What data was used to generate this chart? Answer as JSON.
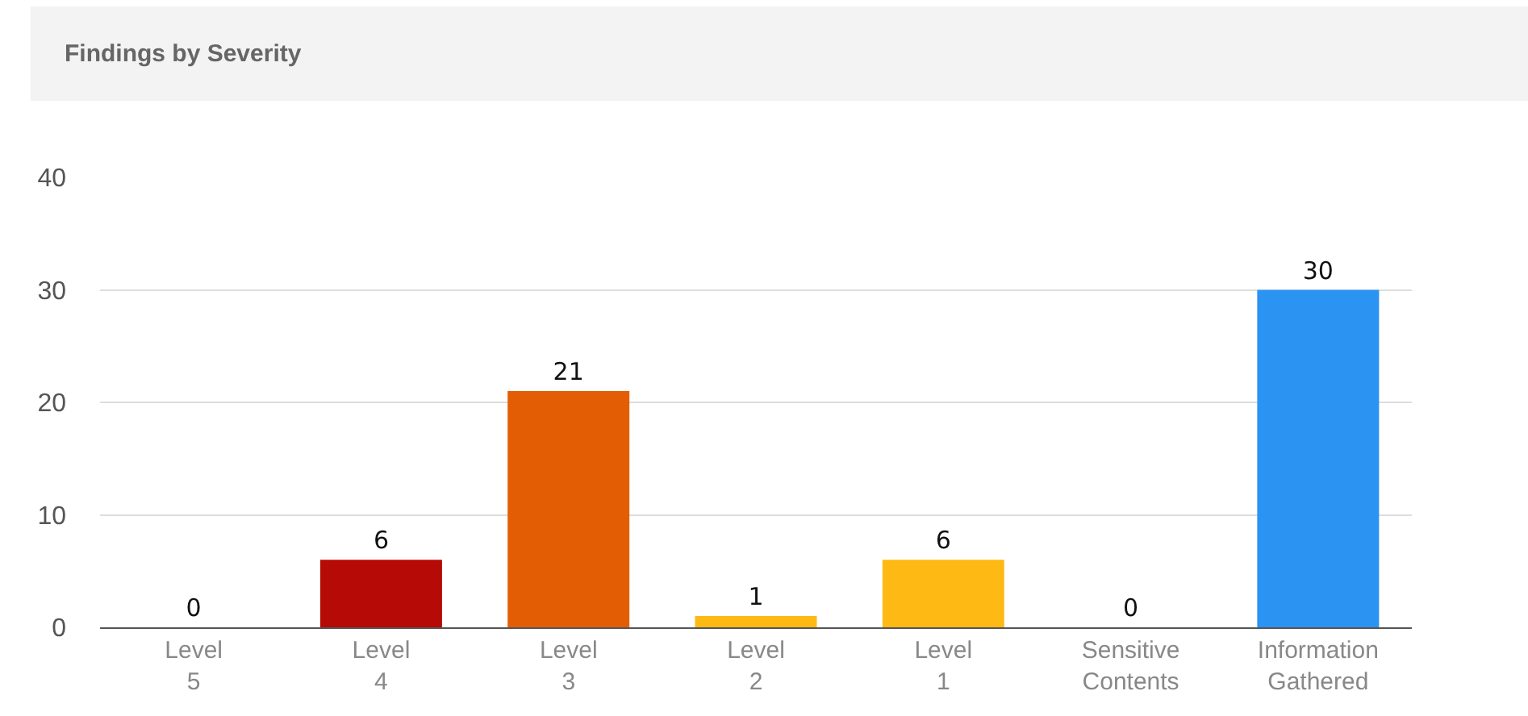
{
  "chart_data": {
    "type": "bar",
    "title": "Findings by Severity",
    "categories": [
      "Level 5",
      "Level 4",
      "Level 3",
      "Level 2",
      "Level 1",
      "Sensitive Contents",
      "Information Gathered"
    ],
    "values": [
      0,
      6,
      21,
      1,
      6,
      0,
      30
    ],
    "colors": [
      "#b50a05",
      "#b50a05",
      "#e35d04",
      "#ffb914",
      "#ffb914",
      "#ffb914",
      "#2b93f2"
    ],
    "ylim": [
      0,
      40
    ],
    "yticks": [
      0,
      10,
      20,
      30,
      40
    ],
    "grid": "y",
    "data_labels": true
  }
}
